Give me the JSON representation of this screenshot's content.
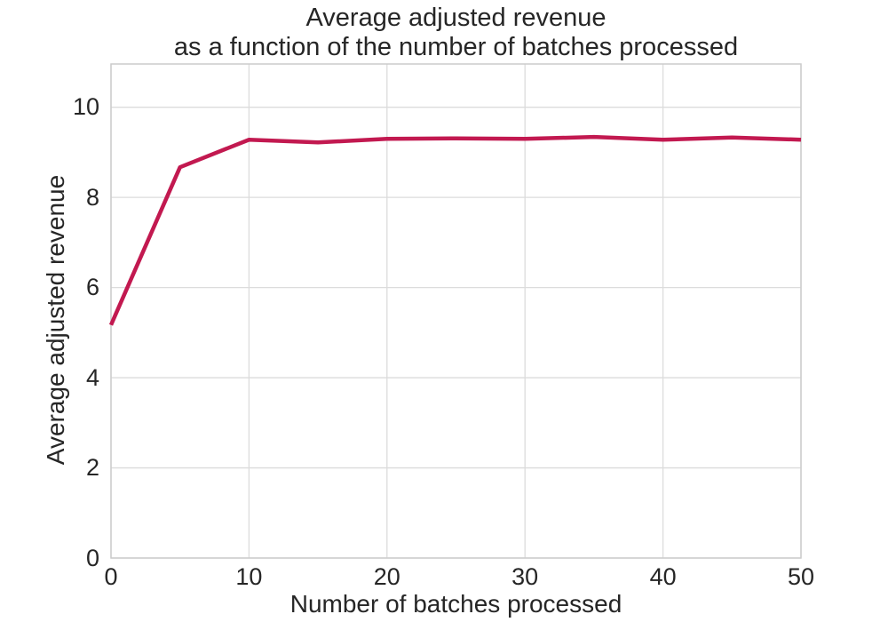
{
  "chart_data": {
    "type": "line",
    "title_line1": "Average adjusted revenue",
    "title_line2": "as a function of the number of batches processed",
    "xlabel": "Number of batches processed",
    "ylabel": "Average adjusted revenue",
    "x": [
      0,
      5,
      10,
      15,
      20,
      25,
      30,
      35,
      40,
      45,
      50
    ],
    "y": [
      5.17,
      8.67,
      9.28,
      9.22,
      9.3,
      9.31,
      9.3,
      9.34,
      9.28,
      9.33,
      9.28
    ],
    "xticks": [
      0,
      10,
      20,
      30,
      40,
      50
    ],
    "yticks": [
      0,
      2,
      4,
      6,
      8,
      10
    ],
    "xlim": [
      0,
      50
    ],
    "ylim": [
      0,
      10.96
    ],
    "grid": true,
    "legend": "none",
    "line_color": "#C21950",
    "grid_color": "#DCDCDC",
    "spine_color": "#CCCCCC",
    "text_color": "#262626",
    "background": "#FFFFFF"
  }
}
